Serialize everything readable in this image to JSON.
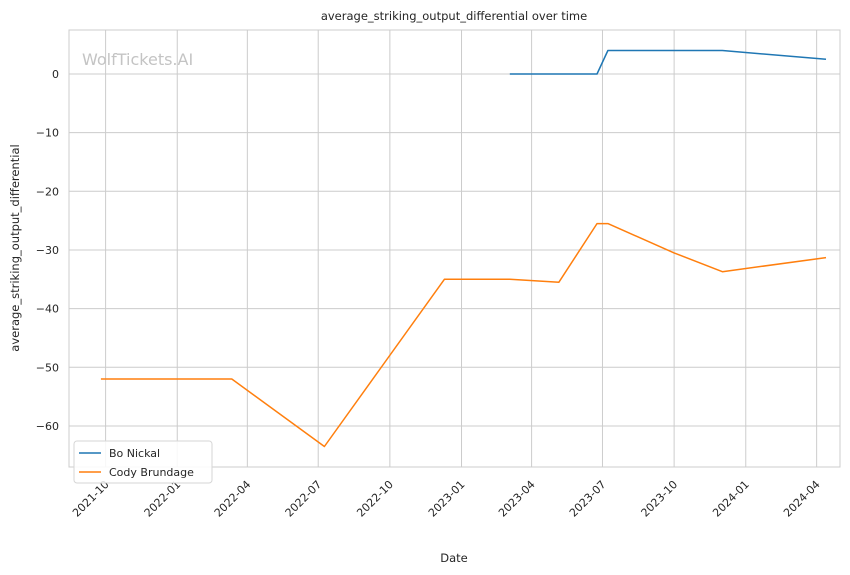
{
  "chart_data": {
    "type": "line",
    "title": "average_striking_output_differential over time",
    "xlabel": "Date",
    "ylabel": "average_striking_output_differential",
    "watermark": "WolfTickets.AI",
    "x_range": [
      "2021-08-15",
      "2024-05-01"
    ],
    "ylim": [
      -67,
      7.5
    ],
    "grid": true,
    "legend_position": "lower-left",
    "x_ticks": [
      "2021-10",
      "2022-01",
      "2022-04",
      "2022-07",
      "2022-10",
      "2023-01",
      "2023-04",
      "2023-07",
      "2023-10",
      "2024-01",
      "2024-04"
    ],
    "y_ticks": [
      0,
      -10,
      -20,
      -30,
      -40,
      -50,
      -60
    ],
    "y_tick_labels": [
      "0",
      "−10",
      "−20",
      "−30",
      "−40",
      "−50",
      "−60"
    ],
    "series": [
      {
        "name": "Bo Nickal",
        "color": "#1f77b4",
        "points": [
          {
            "x": "2023-03-04",
            "y": 0
          },
          {
            "x": "2023-06-24",
            "y": 0
          },
          {
            "x": "2023-07-08",
            "y": 4
          },
          {
            "x": "2023-12-02",
            "y": 4
          },
          {
            "x": "2024-04-13",
            "y": 2.5
          }
        ]
      },
      {
        "name": "Cody Brundage",
        "color": "#ff7f0e",
        "points": [
          {
            "x": "2021-09-25",
            "y": -52
          },
          {
            "x": "2022-03-12",
            "y": -52
          },
          {
            "x": "2022-07-09",
            "y": -63.5
          },
          {
            "x": "2022-12-10",
            "y": -35
          },
          {
            "x": "2023-03-04",
            "y": -35
          },
          {
            "x": "2023-05-06",
            "y": -35.5
          },
          {
            "x": "2023-06-24",
            "y": -25.5
          },
          {
            "x": "2023-07-08",
            "y": -25.5
          },
          {
            "x": "2023-10-01",
            "y": -30.5
          },
          {
            "x": "2023-12-02",
            "y": -33.7
          },
          {
            "x": "2024-04-13",
            "y": -31.3
          }
        ]
      }
    ]
  }
}
